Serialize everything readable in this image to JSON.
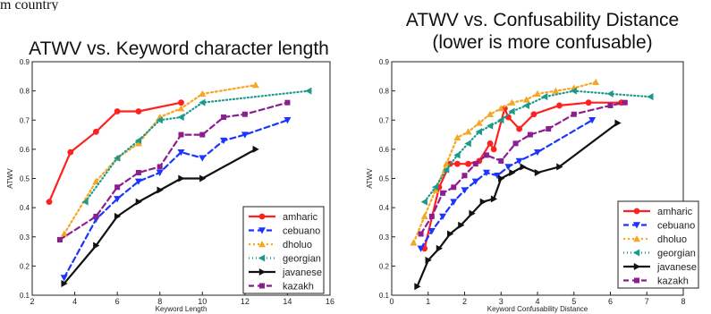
{
  "page": {
    "fragment_text": "m country"
  },
  "chart_data": [
    {
      "type": "line",
      "title": "ATWV vs. Keyword character length",
      "subtitle": "",
      "xlabel": "Keyword Length",
      "ylabel": "ATWV",
      "xlim": [
        2,
        16
      ],
      "ylim": [
        0.1,
        0.9
      ],
      "xticks": [
        "2",
        "4",
        "6",
        "8",
        "10",
        "12",
        "14",
        "16"
      ],
      "yticks": [
        "0.1",
        "0.2",
        "0.3",
        "0.4",
        "0.5",
        "0.6",
        "0.7",
        "0.8",
        "0.9"
      ],
      "grid": false,
      "legend_position": "bottom-right",
      "series": [
        {
          "name": "amharic",
          "color": "#ff2020",
          "marker": "circle",
          "dash": "",
          "x": [
            2.8,
            3.8,
            5,
            6,
            7,
            9
          ],
          "y": [
            0.42,
            0.59,
            0.66,
            0.73,
            0.73,
            0.76
          ]
        },
        {
          "name": "cebuano",
          "color": "#1a35ff",
          "marker": "tri-down",
          "dash": "6,4",
          "x": [
            3.5,
            5,
            6,
            7,
            8,
            9,
            10,
            11,
            12,
            14
          ],
          "y": [
            0.16,
            0.36,
            0.43,
            0.49,
            0.52,
            0.59,
            0.57,
            0.63,
            0.65,
            0.7
          ]
        },
        {
          "name": "dholuo",
          "color": "#f5a623",
          "marker": "tri-up",
          "dash": "2,3",
          "x": [
            3.5,
            5,
            6,
            7,
            8,
            9,
            10,
            12.5
          ],
          "y": [
            0.31,
            0.49,
            0.57,
            0.62,
            0.71,
            0.74,
            0.79,
            0.82
          ]
        },
        {
          "name": "georgian",
          "color": "#1a9a8a",
          "marker": "tri-left",
          "dash": "1,3",
          "x": [
            4.5,
            6,
            7,
            8,
            9,
            10,
            15
          ],
          "y": [
            0.42,
            0.57,
            0.63,
            0.7,
            0.71,
            0.76,
            0.8
          ]
        },
        {
          "name": "javanese",
          "color": "#111111",
          "marker": "tri-right",
          "dash": "",
          "x": [
            3.5,
            5,
            6,
            7,
            8,
            9,
            10,
            12.5
          ],
          "y": [
            0.14,
            0.27,
            0.37,
            0.42,
            0.46,
            0.5,
            0.5,
            0.6
          ]
        },
        {
          "name": "kazakh",
          "color": "#8b1f8f",
          "marker": "square",
          "dash": "6,4",
          "x": [
            3.3,
            5,
            6,
            7,
            8,
            9,
            10,
            11,
            12,
            14
          ],
          "y": [
            0.29,
            0.37,
            0.47,
            0.52,
            0.54,
            0.65,
            0.65,
            0.71,
            0.72,
            0.76
          ]
        }
      ]
    },
    {
      "type": "line",
      "title": "ATWV vs. Confusability Distance",
      "subtitle": "(lower is more confusable)",
      "xlabel": "Keyword Confusability Distance",
      "ylabel": "ATWV",
      "xlim": [
        0,
        8
      ],
      "ylim": [
        0.1,
        0.9
      ],
      "xticks": [
        "0",
        "1",
        "2",
        "3",
        "4",
        "5",
        "6",
        "7",
        "8"
      ],
      "yticks": [
        "0.1",
        "0.2",
        "0.3",
        "0.4",
        "0.5",
        "0.6",
        "0.7",
        "0.8",
        "0.9"
      ],
      "grid": false,
      "legend_position": "bottom-right",
      "series": [
        {
          "name": "amharic",
          "color": "#ff2020",
          "marker": "circle",
          "dash": "",
          "x": [
            0.9,
            1.3,
            1.6,
            1.8,
            2.1,
            2.4,
            2.7,
            2.8,
            3.1,
            3.2,
            3.5,
            3.9,
            4.6,
            5.4,
            6.3
          ],
          "y": [
            0.26,
            0.47,
            0.55,
            0.55,
            0.55,
            0.56,
            0.62,
            0.6,
            0.74,
            0.71,
            0.67,
            0.72,
            0.75,
            0.76,
            0.76
          ]
        },
        {
          "name": "cebuano",
          "color": "#1a35ff",
          "marker": "tri-down",
          "dash": "6,4",
          "x": [
            0.8,
            1.1,
            1.4,
            1.7,
            2.0,
            2.3,
            2.6,
            2.9,
            3.2,
            3.5,
            4.0,
            5.5
          ],
          "y": [
            0.26,
            0.32,
            0.37,
            0.42,
            0.46,
            0.49,
            0.52,
            0.51,
            0.54,
            0.56,
            0.59,
            0.7
          ]
        },
        {
          "name": "dholuo",
          "color": "#f5a623",
          "marker": "tri-up",
          "dash": "2,3",
          "x": [
            0.6,
            0.9,
            1.2,
            1.5,
            1.8,
            2.1,
            2.4,
            2.7,
            3.0,
            3.3,
            3.7,
            4.0,
            4.5,
            5.0,
            5.6
          ],
          "y": [
            0.28,
            0.37,
            0.46,
            0.55,
            0.64,
            0.66,
            0.69,
            0.72,
            0.74,
            0.76,
            0.77,
            0.79,
            0.8,
            0.81,
            0.83
          ]
        },
        {
          "name": "georgian",
          "color": "#1a9a8a",
          "marker": "tri-left",
          "dash": "1,3",
          "x": [
            0.9,
            1.2,
            1.5,
            1.8,
            2.1,
            2.4,
            2.7,
            3.0,
            3.3,
            3.7,
            4.2,
            5.0,
            6.0,
            7.1
          ],
          "y": [
            0.42,
            0.47,
            0.53,
            0.58,
            0.62,
            0.66,
            0.68,
            0.7,
            0.73,
            0.75,
            0.78,
            0.8,
            0.79,
            0.78
          ]
        },
        {
          "name": "javanese",
          "color": "#111111",
          "marker": "tri-right",
          "dash": "",
          "x": [
            0.7,
            1.0,
            1.3,
            1.6,
            1.9,
            2.2,
            2.5,
            2.8,
            3.0,
            3.3,
            3.6,
            4.0,
            4.6,
            6.2
          ],
          "y": [
            0.13,
            0.22,
            0.26,
            0.31,
            0.34,
            0.38,
            0.42,
            0.43,
            0.5,
            0.52,
            0.54,
            0.52,
            0.54,
            0.69
          ]
        },
        {
          "name": "kazakh",
          "color": "#8b1f8f",
          "marker": "square",
          "dash": "6,4",
          "x": [
            0.8,
            1.1,
            1.4,
            1.7,
            2.0,
            2.3,
            2.6,
            3.0,
            3.4,
            3.8,
            4.3,
            5.0,
            6.0,
            6.4
          ],
          "y": [
            0.31,
            0.37,
            0.45,
            0.47,
            0.51,
            0.55,
            0.58,
            0.56,
            0.62,
            0.65,
            0.67,
            0.72,
            0.75,
            0.76
          ]
        }
      ]
    }
  ]
}
